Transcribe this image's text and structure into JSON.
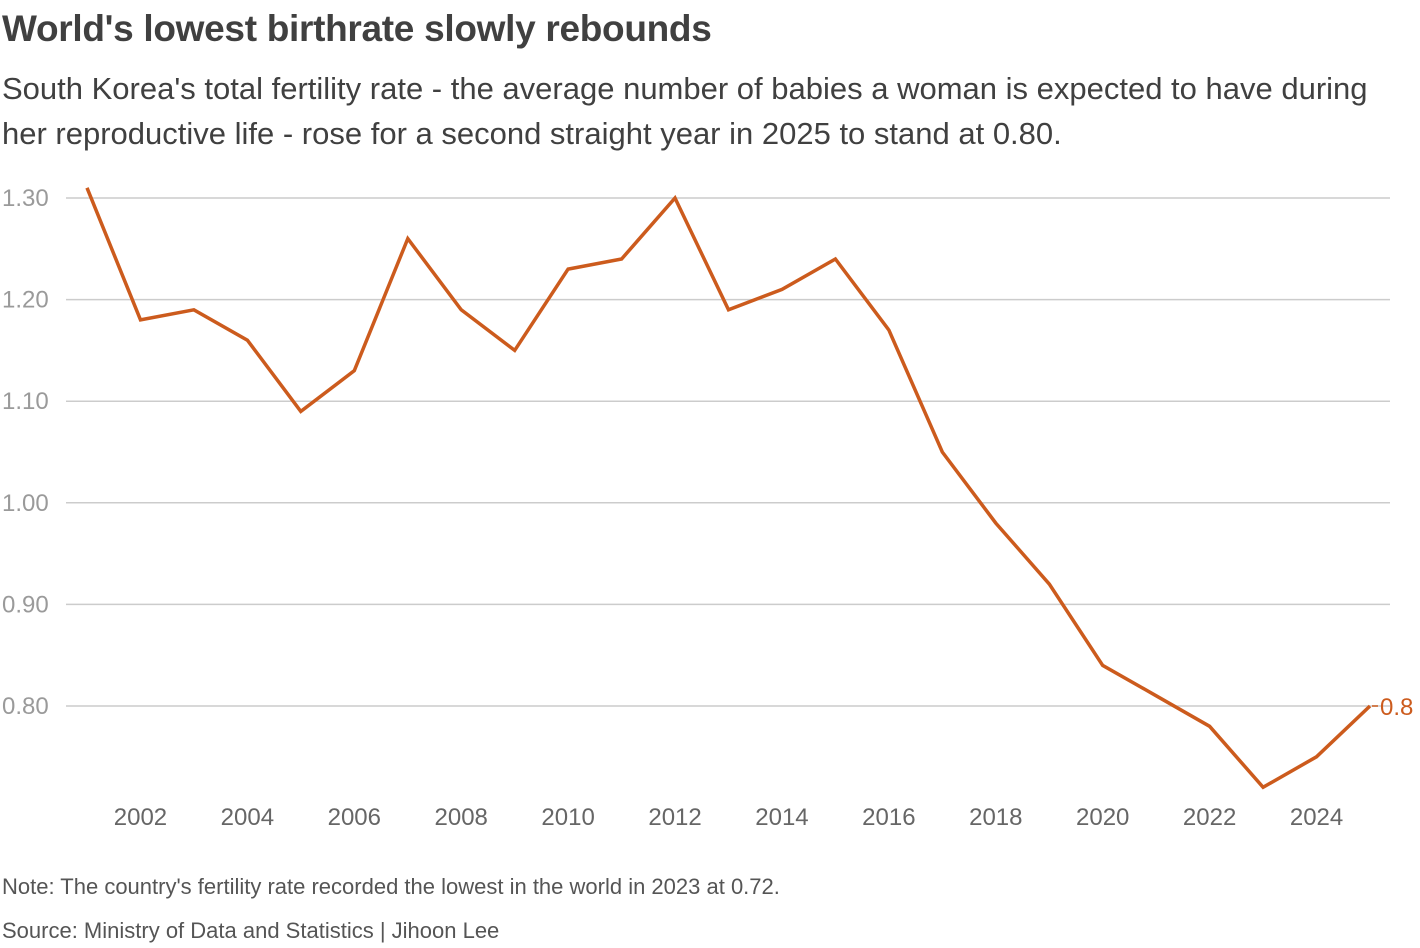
{
  "title": "World's lowest birthrate slowly rebounds",
  "subtitle": "South Korea's total fertility rate - the average number of babies a woman is expected to have during her reproductive life - rose for a second straight year in 2025 to stand at 0.80.",
  "note": "Note: The country's fertility rate recorded the lowest in the world in 2023 at 0.72.",
  "source": "Source: Ministry of Data and Statistics | Jihoon Lee",
  "colors": {
    "line": "#cc5b1d",
    "grid": "#cccccc",
    "tick_label": "#9a9a9a",
    "x_tick_label": "#666666"
  },
  "chart_data": {
    "type": "line",
    "title": "",
    "xlabel": "",
    "ylabel": "",
    "x": [
      2001,
      2002,
      2003,
      2004,
      2005,
      2006,
      2007,
      2008,
      2009,
      2010,
      2011,
      2012,
      2013,
      2014,
      2015,
      2016,
      2017,
      2018,
      2019,
      2020,
      2021,
      2022,
      2023,
      2024,
      2025
    ],
    "series": [
      {
        "name": "",
        "values": [
          1.31,
          1.18,
          1.19,
          1.16,
          1.09,
          1.13,
          1.26,
          1.19,
          1.15,
          1.23,
          1.24,
          1.3,
          1.19,
          1.21,
          1.24,
          1.17,
          1.05,
          0.98,
          0.92,
          0.84,
          0.81,
          0.78,
          0.72,
          0.75,
          0.8
        ]
      }
    ],
    "yticks": [
      "0.80",
      "0.90",
      "1.00",
      "1.10",
      "1.20",
      "1.30"
    ],
    "ytick_values": [
      0.8,
      0.9,
      1.0,
      1.1,
      1.2,
      1.3
    ],
    "xticks": [
      "2002",
      "2004",
      "2006",
      "2008",
      "2010",
      "2012",
      "2014",
      "2016",
      "2018",
      "2020",
      "2022",
      "2024"
    ],
    "xtick_values": [
      2002,
      2004,
      2006,
      2008,
      2010,
      2012,
      2014,
      2016,
      2018,
      2020,
      2022,
      2024
    ],
    "end_label": "0.8",
    "grid": true,
    "legend": "none"
  }
}
